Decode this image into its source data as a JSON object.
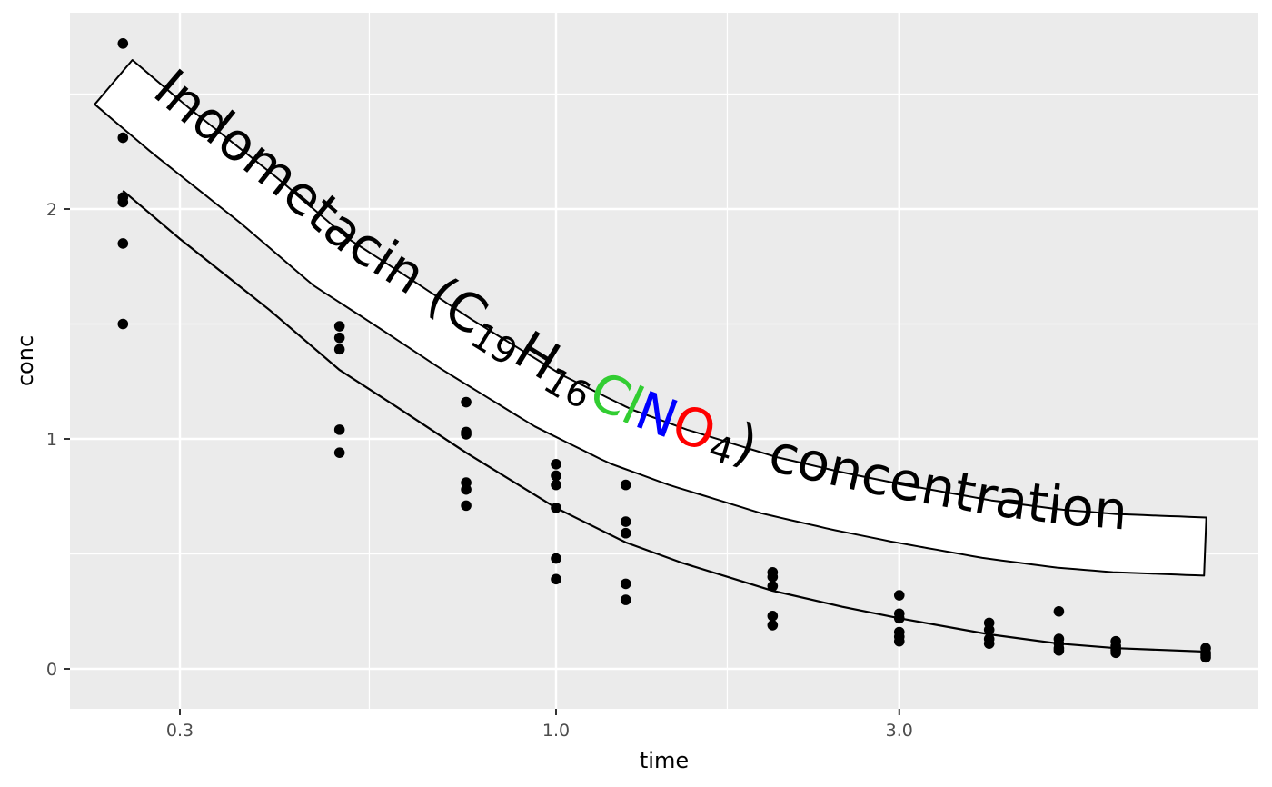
{
  "chart_data": {
    "type": "scatter",
    "title": "",
    "xlabel": "time",
    "ylabel": "conc",
    "x_scale": "log10",
    "xlim": [
      0.2,
      7.2
    ],
    "ylim": [
      -0.18,
      2.86
    ],
    "x_ticks": [
      {
        "value": 0.3,
        "label": "0.3"
      },
      {
        "value": 1.0,
        "label": "1.0"
      },
      {
        "value": 3.0,
        "label": "3.0"
      }
    ],
    "x_minor_ticks": [
      0.55,
      1.73
    ],
    "y_ticks": [
      {
        "value": 0,
        "label": "0"
      },
      {
        "value": 1,
        "label": "1"
      },
      {
        "value": 2,
        "label": "2"
      }
    ],
    "y_minor_ticks": [
      0.5,
      1.5,
      2.5
    ],
    "grid": true,
    "background": "#ebebeb",
    "grid_color": "#ffffff",
    "points": [
      {
        "x": 0.25,
        "y": 2.72
      },
      {
        "x": 0.25,
        "y": 2.31
      },
      {
        "x": 0.25,
        "y": 2.05
      },
      {
        "x": 0.25,
        "y": 2.03
      },
      {
        "x": 0.25,
        "y": 1.85
      },
      {
        "x": 0.25,
        "y": 1.5
      },
      {
        "x": 0.5,
        "y": 1.63
      },
      {
        "x": 0.5,
        "y": 1.49
      },
      {
        "x": 0.5,
        "y": 1.44
      },
      {
        "x": 0.5,
        "y": 1.39
      },
      {
        "x": 0.5,
        "y": 1.04
      },
      {
        "x": 0.5,
        "y": 0.94
      },
      {
        "x": 0.75,
        "y": 1.16
      },
      {
        "x": 0.75,
        "y": 1.03
      },
      {
        "x": 0.75,
        "y": 1.02
      },
      {
        "x": 0.75,
        "y": 0.81
      },
      {
        "x": 0.75,
        "y": 0.78
      },
      {
        "x": 0.75,
        "y": 0.71
      },
      {
        "x": 1.0,
        "y": 0.89
      },
      {
        "x": 1.0,
        "y": 0.84
      },
      {
        "x": 1.0,
        "y": 0.8
      },
      {
        "x": 1.0,
        "y": 0.7
      },
      {
        "x": 1.0,
        "y": 0.48
      },
      {
        "x": 1.0,
        "y": 0.39
      },
      {
        "x": 1.25,
        "y": 0.8
      },
      {
        "x": 1.25,
        "y": 0.64
      },
      {
        "x": 1.25,
        "y": 0.59
      },
      {
        "x": 1.25,
        "y": 0.37
      },
      {
        "x": 1.25,
        "y": 0.3
      },
      {
        "x": 2.0,
        "y": 0.42
      },
      {
        "x": 2.0,
        "y": 0.4
      },
      {
        "x": 2.0,
        "y": 0.36
      },
      {
        "x": 2.0,
        "y": 0.23
      },
      {
        "x": 2.0,
        "y": 0.19
      },
      {
        "x": 3.0,
        "y": 0.32
      },
      {
        "x": 3.0,
        "y": 0.24
      },
      {
        "x": 3.0,
        "y": 0.22
      },
      {
        "x": 3.0,
        "y": 0.16
      },
      {
        "x": 3.0,
        "y": 0.14
      },
      {
        "x": 3.0,
        "y": 0.12
      },
      {
        "x": 4.0,
        "y": 0.2
      },
      {
        "x": 4.0,
        "y": 0.17
      },
      {
        "x": 4.0,
        "y": 0.13
      },
      {
        "x": 4.0,
        "y": 0.11
      },
      {
        "x": 5.0,
        "y": 0.25
      },
      {
        "x": 5.0,
        "y": 0.13
      },
      {
        "x": 5.0,
        "y": 0.11
      },
      {
        "x": 5.0,
        "y": 0.09
      },
      {
        "x": 5.0,
        "y": 0.08
      },
      {
        "x": 6.0,
        "y": 0.12
      },
      {
        "x": 6.0,
        "y": 0.1
      },
      {
        "x": 6.0,
        "y": 0.09
      },
      {
        "x": 6.0,
        "y": 0.08
      },
      {
        "x": 6.0,
        "y": 0.07
      },
      {
        "x": 8.0,
        "y": 0.09
      },
      {
        "x": 8.0,
        "y": 0.07
      },
      {
        "x": 8.0,
        "y": 0.06
      },
      {
        "x": 8.0,
        "y": 0.05
      }
    ],
    "fit_curve": {
      "x": [
        0.25,
        0.3,
        0.4,
        0.5,
        0.6,
        0.75,
        1.0,
        1.25,
        1.5,
        2.0,
        2.5,
        3.0,
        4.0,
        5.0,
        6.0,
        8.0
      ],
      "y": [
        2.08,
        1.87,
        1.56,
        1.3,
        1.14,
        0.94,
        0.7,
        0.55,
        0.46,
        0.34,
        0.27,
        0.22,
        0.15,
        0.11,
        0.09,
        0.075
      ]
    },
    "curved_label": {
      "segments": [
        {
          "text": "Indometacin (C",
          "color": "#000000",
          "sub": false
        },
        {
          "text": "19",
          "color": "#000000",
          "sub": true
        },
        {
          "text": "H",
          "color": "#000000",
          "sub": false
        },
        {
          "text": "16",
          "color": "#000000",
          "sub": true
        },
        {
          "text": "Cl",
          "color": "#32cd32",
          "sub": false
        },
        {
          "text": "N",
          "color": "#0000ff",
          "sub": false
        },
        {
          "text": "O",
          "color": "#ff0000",
          "sub": false
        },
        {
          "text": "4",
          "color": "#000000",
          "sub": true
        },
        {
          "text": ") concentration",
          "color": "#000000",
          "sub": false
        }
      ],
      "offset_y": 0.52
    }
  }
}
